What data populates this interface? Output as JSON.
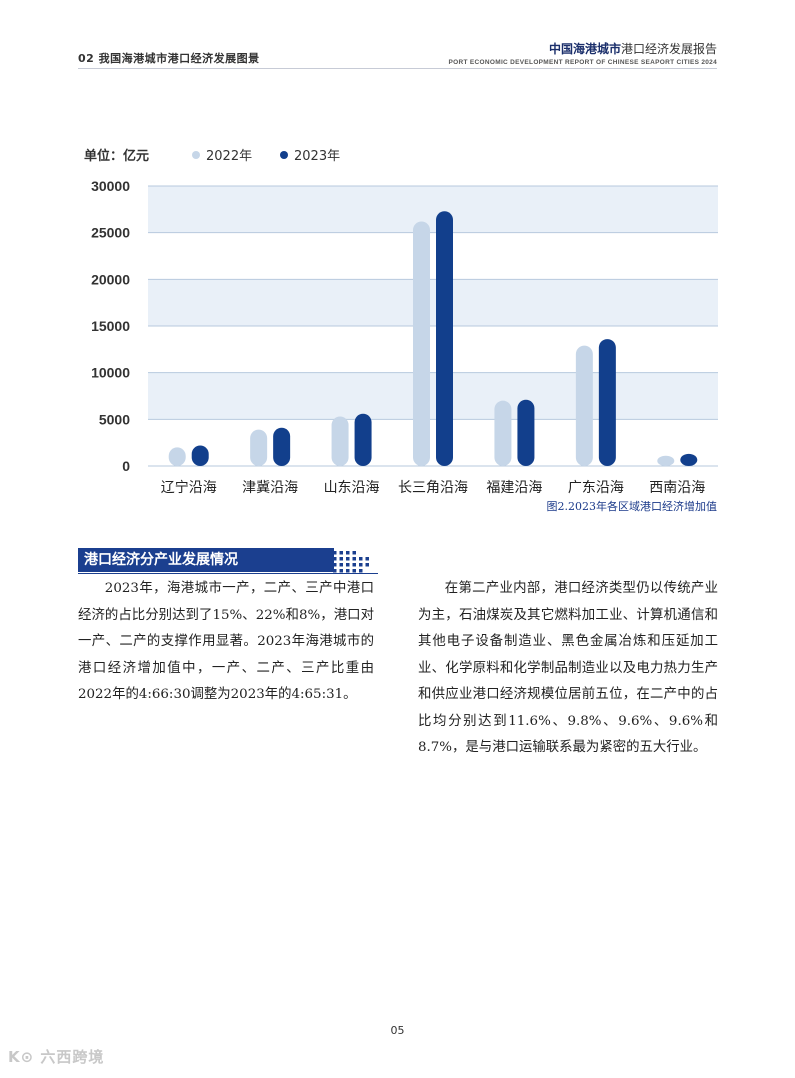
{
  "header": {
    "left": "02 我国海港城市港口经济发展图景",
    "title_strong": "中国海港城市",
    "title_rest": "港口经济发展报告",
    "subtitle": "PORT ECONOMIC DEVELOPMENT REPORT OF CHINESE SEAPORT CITIES 2024"
  },
  "chart_data": {
    "type": "bar",
    "unit_label": "单位：亿元",
    "categories": [
      "辽宁沿海",
      "津冀沿海",
      "山东沿海",
      "长三角沿海",
      "福建沿海",
      "广东沿海",
      "西南沿海"
    ],
    "series": [
      {
        "name": "2022年",
        "values": [
          2000,
          3900,
          5300,
          26200,
          7000,
          12900,
          1100
        ]
      },
      {
        "name": "2023年",
        "values": [
          2200,
          4100,
          5600,
          27300,
          7100,
          13600,
          1300
        ]
      }
    ],
    "yticks": [
      0,
      5000,
      10000,
      15000,
      20000,
      25000,
      30000
    ],
    "ylim": [
      0,
      30000
    ],
    "grid": true,
    "legend": "top-left",
    "colors": {
      "2022年": "#c6d6e8",
      "2023年": "#123f8c"
    }
  },
  "caption": "图2.2023年各区域港口经济增加值",
  "section": {
    "title": "港口经济分产业发展情况"
  },
  "paragraphs": {
    "left": "2023年，海港城市一产，二产、三产中港口经济的占比分别达到了15%、22%和8%，港口对一产、二产的支撑作用显著。2023年海港城市的港口经济增加值中，一产、二产、三产比重由2022年的4:66:30调整为2023年的4:65:31。",
    "right": "在第二产业内部，港口经济类型仍以传统产业为主，石油煤炭及其它燃料加工业、计算机通信和其他电子设备制造业、黑色金属冶炼和压延加工业、化学原料和化学制品制造业以及电力热力生产和供应业港口经济规模位居前五位，在二产中的占比均分别达到11.6%、9.8%、9.6%、9.6%和8.7%，是与港口运输联系最为紧密的五大行业。"
  },
  "page_number": "05",
  "watermark": "K⊙ 六西跨境"
}
